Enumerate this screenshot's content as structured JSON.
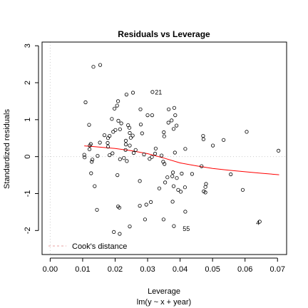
{
  "chart_data": {
    "type": "scatter",
    "title": "Residuals vs Leverage",
    "xlabel": "Leverage",
    "subtitle": "lm(y ~ x + year)",
    "ylabel": "Standardized residuals",
    "xlim": [
      -0.0025,
      0.0728
    ],
    "ylim": [
      -2.65,
      3.1
    ],
    "xticks": [
      "0.00",
      "0.01",
      "0.02",
      "0.03",
      "0.04",
      "0.05",
      "0.06",
      "0.07"
    ],
    "yticks": [
      "-2",
      "-1",
      "0",
      "1",
      "2",
      "3"
    ],
    "xtick_values": [
      0,
      0.01,
      0.02,
      0.03,
      0.04,
      0.05,
      0.06,
      0.07
    ],
    "ytick_values": [
      -2,
      -1,
      0,
      1,
      2,
      3
    ],
    "legend": {
      "label": "Cook's distance",
      "position": "bottom-left",
      "color": "#e8a0a0"
    },
    "reference_lines": {
      "x": 0,
      "y": 0,
      "style": "dotted",
      "color": "#cccccc"
    },
    "smooth_color": "#ff0000",
    "smooth": {
      "x": [
        0.0105,
        0.015,
        0.02,
        0.025,
        0.03,
        0.035,
        0.04,
        0.045,
        0.05,
        0.055,
        0.06,
        0.065,
        0.0705
      ],
      "y": [
        0.29,
        0.26,
        0.22,
        0.16,
        0.08,
        -0.04,
        -0.17,
        -0.25,
        -0.32,
        -0.37,
        -0.41,
        -0.45,
        -0.49
      ]
    },
    "labels": [
      {
        "text": "21",
        "x": 0.03222,
        "y": 1.74
      },
      {
        "text": "55",
        "x": 0.0408,
        "y": -1.96
      },
      {
        "text": "4",
        "x": 0.0634,
        "y": -1.79
      }
    ],
    "points": [
      [
        0.0133,
        2.43
      ],
      [
        0.0154,
        2.48
      ],
      [
        0.0235,
        1.68
      ],
      [
        0.0255,
        1.73
      ],
      [
        0.0315,
        1.75
      ],
      [
        0.0109,
        1.47
      ],
      [
        0.0209,
        1.5
      ],
      [
        0.0206,
        1.38
      ],
      [
        0.0198,
        1.3
      ],
      [
        0.0278,
        1.28
      ],
      [
        0.03,
        1.12
      ],
      [
        0.0314,
        1.12
      ],
      [
        0.0365,
        1.28
      ],
      [
        0.0382,
        1.32
      ],
      [
        0.0385,
        1.12
      ],
      [
        0.0374,
        0.98
      ],
      [
        0.0364,
        0.92
      ],
      [
        0.0389,
        0.84
      ],
      [
        0.019,
        1.02
      ],
      [
        0.021,
        0.97
      ],
      [
        0.0219,
        0.9
      ],
      [
        0.024,
        0.85
      ],
      [
        0.0244,
        0.78
      ],
      [
        0.0215,
        0.74
      ],
      [
        0.0279,
        0.87
      ],
      [
        0.012,
        0.86
      ],
      [
        0.0167,
        0.58
      ],
      [
        0.0183,
        0.56
      ],
      [
        0.0178,
        0.5
      ],
      [
        0.0194,
        0.67
      ],
      [
        0.0201,
        0.72
      ],
      [
        0.0245,
        0.64
      ],
      [
        0.0254,
        0.57
      ],
      [
        0.0248,
        0.51
      ],
      [
        0.0283,
        0.63
      ],
      [
        0.035,
        0.66
      ],
      [
        0.0351,
        0.55
      ],
      [
        0.038,
        0.75
      ],
      [
        0.0471,
        0.56
      ],
      [
        0.0472,
        0.47
      ],
      [
        0.0534,
        0.45
      ],
      [
        0.0501,
        0.3
      ],
      [
        0.0605,
        0.67
      ],
      [
        0.0153,
        0.38
      ],
      [
        0.0177,
        0.37
      ],
      [
        0.0125,
        0.34
      ],
      [
        0.0122,
        0.3
      ],
      [
        0.0233,
        0.43
      ],
      [
        0.0233,
        0.33
      ],
      [
        0.0245,
        0.3
      ],
      [
        0.0178,
        0.27
      ],
      [
        0.0121,
        0.2
      ],
      [
        0.0232,
        0.18
      ],
      [
        0.0263,
        0.18
      ],
      [
        0.0325,
        0.22
      ],
      [
        0.0384,
        0.11
      ],
      [
        0.0416,
        0.21
      ],
      [
        0.0105,
        0.05
      ],
      [
        0.0106,
        -0.02
      ],
      [
        0.013,
        -0.08
      ],
      [
        0.0128,
        -0.14
      ],
      [
        0.0146,
        0.02
      ],
      [
        0.0183,
        0.04
      ],
      [
        0.0192,
        0.09
      ],
      [
        0.0227,
        -0.04
      ],
      [
        0.0215,
        -0.07
      ],
      [
        0.0236,
        -0.12
      ],
      [
        0.0257,
        0.1
      ],
      [
        0.0289,
        0.06
      ],
      [
        0.0306,
        -0.06
      ],
      [
        0.0323,
        0.08
      ],
      [
        0.0343,
        0.03
      ],
      [
        0.0348,
        -0.14
      ],
      [
        0.0313,
        -0.01
      ],
      [
        0.0352,
        -0.2
      ],
      [
        0.0703,
        0.16
      ],
      [
        0.0126,
        -0.45
      ],
      [
        0.0137,
        -0.8
      ],
      [
        0.0207,
        -0.5
      ],
      [
        0.0276,
        -0.66
      ],
      [
        0.0361,
        -0.56
      ],
      [
        0.0378,
        -0.43
      ],
      [
        0.0376,
        -0.53
      ],
      [
        0.039,
        -0.58
      ],
      [
        0.0405,
        -0.46
      ],
      [
        0.0437,
        -0.47
      ],
      [
        0.0466,
        -0.26
      ],
      [
        0.0336,
        -0.86
      ],
      [
        0.0354,
        -0.7
      ],
      [
        0.038,
        -0.8
      ],
      [
        0.0394,
        -0.9
      ],
      [
        0.0402,
        -0.95
      ],
      [
        0.0415,
        -0.83
      ],
      [
        0.0473,
        -0.94
      ],
      [
        0.0478,
        -0.82
      ],
      [
        0.048,
        -0.74
      ],
      [
        0.0556,
        -0.48
      ],
      [
        0.0593,
        -0.9
      ],
      [
        0.0144,
        -1.44
      ],
      [
        0.0209,
        -1.35
      ],
      [
        0.0213,
        -1.38
      ],
      [
        0.0276,
        -1.33
      ],
      [
        0.0296,
        -1.3
      ],
      [
        0.031,
        -1.23
      ],
      [
        0.0377,
        -1.22
      ],
      [
        0.0416,
        -1.49
      ],
      [
        0.0292,
        -1.7
      ],
      [
        0.0349,
        -1.7
      ],
      [
        0.0245,
        -1.89
      ],
      [
        0.0196,
        -2.04
      ],
      [
        0.0214,
        -2.09
      ],
      [
        0.0381,
        -1.88
      ],
      [
        0.0645,
        -1.76
      ],
      [
        0.0478,
        -0.97
      ]
    ]
  }
}
